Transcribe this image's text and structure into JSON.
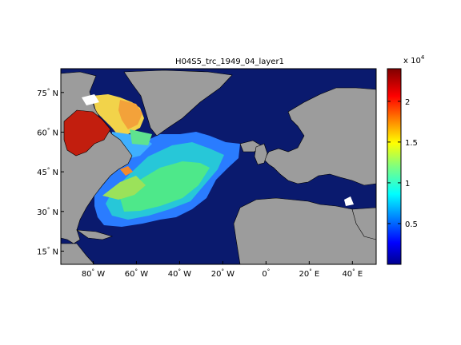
{
  "title": "H04S5_trc_1949_04_layer1",
  "map": {
    "lon_range": [
      -95,
      51
    ],
    "lat_range": [
      10,
      84
    ],
    "x_ticks": [
      {
        "value": -80,
        "label": "80",
        "hemi": "W"
      },
      {
        "value": -60,
        "label": "60",
        "hemi": "W"
      },
      {
        "value": -40,
        "label": "40",
        "hemi": "W"
      },
      {
        "value": -20,
        "label": "20",
        "hemi": "W"
      },
      {
        "value": 0,
        "label": "0",
        "hemi": ""
      },
      {
        "value": 20,
        "label": "20",
        "hemi": "E"
      },
      {
        "value": 40,
        "label": "40",
        "hemi": "E"
      }
    ],
    "y_ticks": [
      {
        "value": 15,
        "label": "15",
        "hemi": "N"
      },
      {
        "value": 30,
        "label": "30",
        "hemi": "N"
      },
      {
        "value": 45,
        "label": "45",
        "hemi": "N"
      },
      {
        "value": 60,
        "label": "60",
        "hemi": "N"
      },
      {
        "value": 75,
        "label": "75",
        "hemi": "N"
      }
    ],
    "colors": {
      "ocean": "#0a1a6e",
      "land": "#9c9c9c",
      "coast": "#000000"
    }
  },
  "colorbar": {
    "range": [
      0,
      24000
    ],
    "exponent_label": "x 10",
    "exponent": "4",
    "ticks": [
      {
        "value": 5000,
        "label": "0.5"
      },
      {
        "value": 10000,
        "label": "1"
      },
      {
        "value": 15000,
        "label": "1.5"
      },
      {
        "value": 20000,
        "label": "2"
      }
    ],
    "colormap": "jet"
  }
}
